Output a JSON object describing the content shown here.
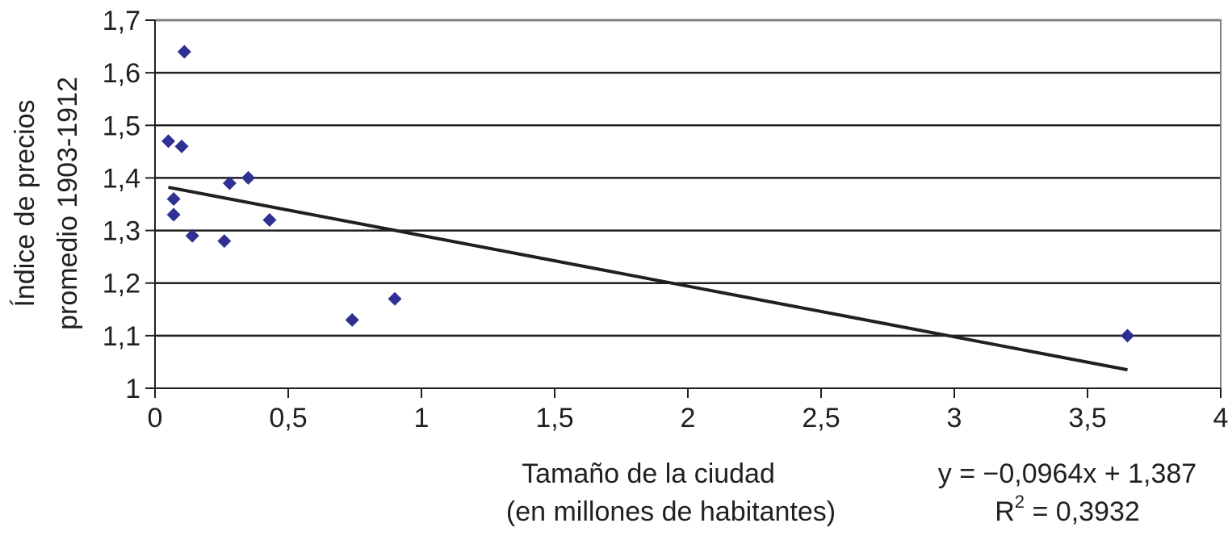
{
  "chart_data": {
    "type": "scatter",
    "xlabel_line1": "Tamaño de la ciudad",
    "xlabel_line2": "(en millones de habitantes)",
    "ylabel_line1": "Índice de precios",
    "ylabel_line2": "promedio 1903-1912",
    "xlim": [
      0,
      4
    ],
    "ylim": [
      1,
      1.7
    ],
    "x_ticks": [
      0,
      0.5,
      1,
      1.5,
      2,
      2.5,
      3,
      3.5,
      4
    ],
    "x_tick_labels": [
      "0",
      "0,5",
      "1",
      "1,5",
      "2",
      "2,5",
      "3",
      "3,5",
      "4"
    ],
    "y_ticks": [
      1,
      1.1,
      1.2,
      1.3,
      1.4,
      1.5,
      1.6,
      1.7
    ],
    "y_tick_labels": [
      "1",
      "1,1",
      "1,2",
      "1,3",
      "1,4",
      "1,5",
      "1,6",
      "1,7"
    ],
    "grid": "horizontal",
    "marker_color": "#2e3192",
    "trendline_color": "#231f20",
    "points": [
      {
        "x": 0.05,
        "y": 1.47
      },
      {
        "x": 0.07,
        "y": 1.36
      },
      {
        "x": 0.07,
        "y": 1.33
      },
      {
        "x": 0.1,
        "y": 1.46
      },
      {
        "x": 0.11,
        "y": 1.64
      },
      {
        "x": 0.14,
        "y": 1.29
      },
      {
        "x": 0.26,
        "y": 1.28
      },
      {
        "x": 0.28,
        "y": 1.39
      },
      {
        "x": 0.35,
        "y": 1.4
      },
      {
        "x": 0.43,
        "y": 1.32
      },
      {
        "x": 0.74,
        "y": 1.13
      },
      {
        "x": 0.9,
        "y": 1.17
      },
      {
        "x": 3.65,
        "y": 1.1
      }
    ],
    "trendline": {
      "slope": -0.0964,
      "intercept": 1.387,
      "x_start": 0.05,
      "x_end": 3.65
    },
    "equation_text": "y = −0,0964x + 1,387",
    "r2_prefix": "R",
    "r2_sup": "2",
    "r2_value": " = 0,3932"
  }
}
